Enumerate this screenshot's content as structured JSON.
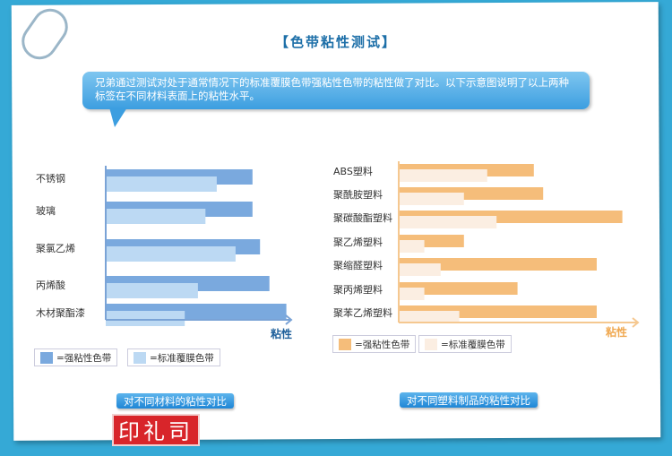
{
  "title": "【色带粘性测试】",
  "intro": "兄弟通过测试对处于通常情况下的标准覆膜色带强粘性色带的粘性做了对比。以下示意图说明了以上两种标签在不同材料表面上的粘性水平。",
  "logo_text": "印礼司",
  "chart_data": [
    {
      "type": "bar",
      "orientation": "horizontal",
      "caption": "对不同材料的粘性对比",
      "xlabel": "粘性",
      "categories": [
        "不锈钢",
        "玻璃",
        "聚氯乙烯",
        "丙烯酸",
        "木材聚酯漆"
      ],
      "series": [
        {
          "name": "=强粘性色带",
          "color": "#7aa9de",
          "values": [
            78,
            78,
            82,
            87,
            96
          ]
        },
        {
          "name": "=标准覆膜色带",
          "color": "#bcd9f3",
          "values": [
            59,
            53,
            69,
            49,
            42
          ]
        }
      ],
      "xlim": [
        0,
        100
      ],
      "axis_color": "#7aa3d6",
      "legend": "bottom",
      "grid": false
    },
    {
      "type": "bar",
      "orientation": "horizontal",
      "caption": "对不同塑料制品的粘性对比",
      "xlabel": "粘性",
      "categories": [
        "ABS塑料",
        "聚酰胺塑料",
        "聚碳酸酯塑料",
        "聚乙烯塑料",
        "聚缩醛塑料",
        "聚丙烯塑料",
        "聚苯乙烯塑料"
      ],
      "series": [
        {
          "name": "=强粘性色带",
          "color": "#f5bd7a",
          "values": [
            58,
            62,
            96,
            28,
            85,
            51,
            85
          ]
        },
        {
          "name": "=标准覆膜色带",
          "color": "#fbeee2",
          "values": [
            38,
            28,
            42,
            11,
            18,
            11,
            26
          ]
        }
      ],
      "xlim": [
        0,
        100
      ],
      "axis_color": "#f5c890",
      "legend": "bottom",
      "grid": false
    }
  ]
}
